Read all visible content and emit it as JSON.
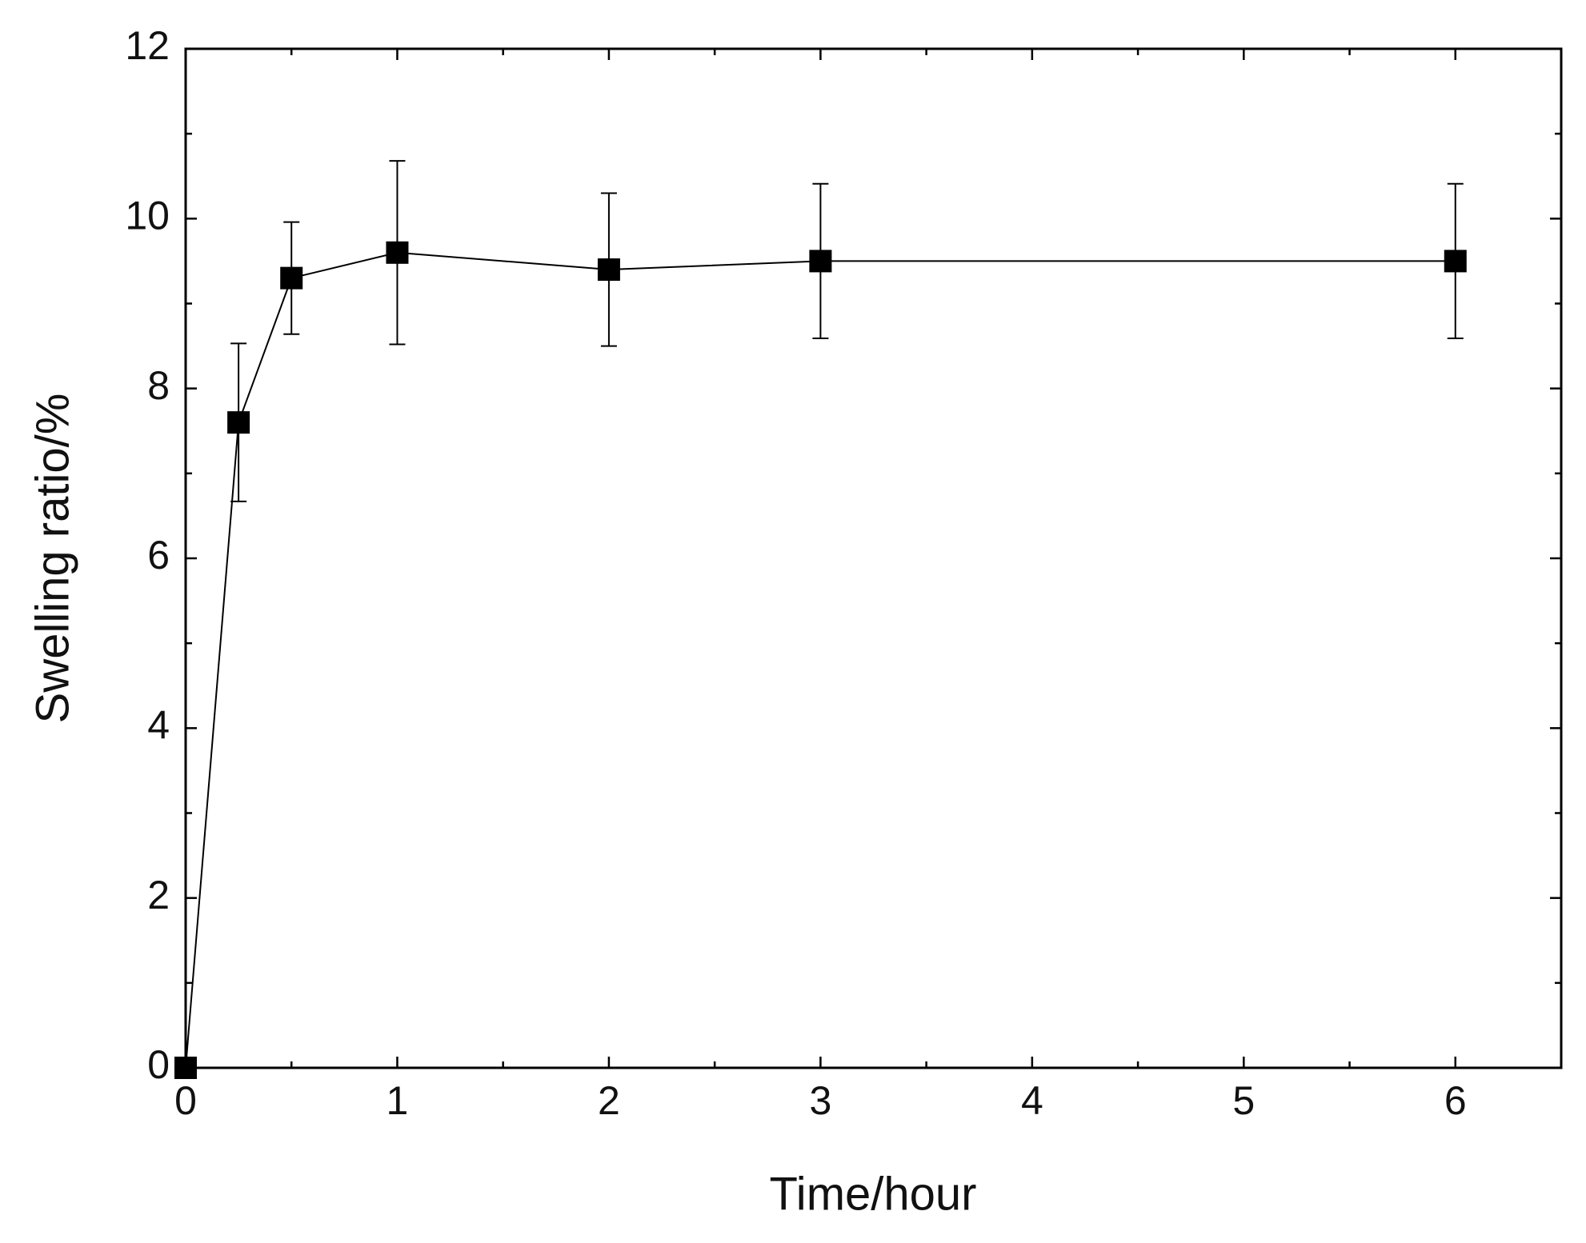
{
  "chart_data": {
    "type": "line",
    "xlabel": "Time/hour",
    "ylabel": "Swelling ratio/%",
    "x": [
      0,
      0.25,
      0.5,
      1,
      2,
      3,
      6
    ],
    "series": [
      {
        "color": "#000000",
        "values": [
          0,
          7.6,
          9.3,
          9.6,
          9.4,
          9.5,
          9.5
        ],
        "errors": [
          0,
          0.93,
          0.66,
          1.08,
          0.9,
          0.91,
          0.91
        ]
      }
    ],
    "xlim": [
      0,
      6.5
    ],
    "xticks": [
      0,
      1,
      2,
      3,
      4,
      5,
      6
    ],
    "x_minor_ticks": [
      0.5,
      1.5,
      2.5,
      3.5,
      4.5,
      5.5
    ],
    "ylim": [
      0,
      12
    ],
    "yticks": [
      0,
      2,
      4,
      6,
      8,
      10,
      12
    ],
    "y_minor_ticks": [
      1,
      3,
      5,
      7,
      9,
      11
    ],
    "grid": false
  }
}
